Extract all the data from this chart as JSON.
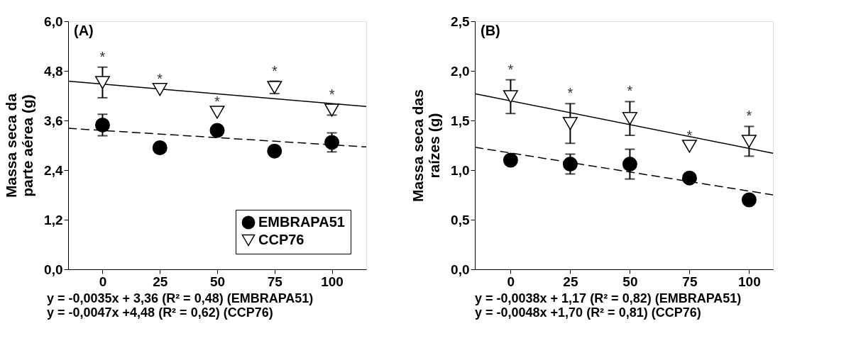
{
  "chart_data": [
    {
      "type": "scatter",
      "title": "(A)",
      "ylabel": "Massa seca da parte aérea (g)",
      "xlim": [
        -15,
        115
      ],
      "xticks": [
        0,
        25,
        50,
        75,
        100
      ],
      "ylim": [
        0,
        6
      ],
      "yticks": [
        {
          "value": 0,
          "label": "0,0"
        },
        {
          "value": 1.2,
          "label": "1,2"
        },
        {
          "value": 2.4,
          "label": "2,4"
        },
        {
          "value": 3.6,
          "label": "3,6"
        },
        {
          "value": 4.8,
          "label": "4,8"
        },
        {
          "value": 6,
          "label": "6,0"
        }
      ],
      "grid": false,
      "legend": "bottom right",
      "x": [
        0,
        25,
        50,
        75,
        100
      ],
      "series": [
        {
          "name": "EMBRAPA51",
          "color": "#000000",
          "marker": "circle",
          "values": [
            3.49,
            2.94,
            3.36,
            2.86,
            3.07
          ],
          "errors": [
            0.26,
            null,
            null,
            null,
            0.23
          ]
        },
        {
          "name": "CCP76",
          "color": "#000000",
          "marker": "triangle",
          "values": [
            4.52,
            4.35,
            3.8,
            4.4,
            3.85
          ],
          "errors": [
            0.37,
            null,
            null,
            0.15,
            0.12
          ]
        },
        {
          "type": "line",
          "x": [
            -15,
            115
          ],
          "values": [
            3.41,
            2.96
          ],
          "color": "#000000",
          "line_style": "dashed"
        },
        {
          "type": "line",
          "x": [
            -15,
            115
          ],
          "values": [
            4.55,
            3.94
          ],
          "color": "#000000",
          "line_style": "solid"
        }
      ],
      "annotations": [
        "*",
        "*",
        "*",
        "*",
        "*",
        "y = -0,0035x + 3,36 (R² = 0,48) (EMBRAPA51)",
        "y = -0,0047x +4,48 (R² = 0,62) (CCP76)"
      ]
    },
    {
      "type": "scatter",
      "title": "(B)",
      "ylabel": "Massa seca das raízes (g)",
      "xlim": [
        -15,
        110
      ],
      "xticks": [
        0,
        25,
        50,
        75,
        100
      ],
      "ylim": [
        0,
        2.5
      ],
      "yticks": [
        {
          "value": 0,
          "label": "0,0"
        },
        {
          "value": 0.5,
          "label": "0,5"
        },
        {
          "value": 1,
          "label": "1,0"
        },
        {
          "value": 1.5,
          "label": "1,5"
        },
        {
          "value": 2,
          "label": "2,0"
        },
        {
          "value": 2.5,
          "label": "2,5"
        }
      ],
      "grid": false,
      "x": [
        0,
        25,
        50,
        75,
        100
      ],
      "series": [
        {
          "color": "#000000",
          "marker": "circle",
          "values": [
            1.1,
            1.06,
            1.06,
            0.92,
            0.7
          ],
          "errors": [
            null,
            0.1,
            0.15,
            null,
            null
          ]
        },
        {
          "color": "#000000",
          "marker": "triangle",
          "values": [
            1.74,
            1.47,
            1.52,
            1.24,
            1.29
          ],
          "errors": [
            0.17,
            0.2,
            0.17,
            null,
            0.15
          ]
        },
        {
          "type": "line",
          "x": [
            -15,
            110
          ],
          "values": [
            1.23,
            0.75
          ],
          "color": "#000000",
          "line_style": "dashed"
        },
        {
          "type": "line",
          "x": [
            -15,
            110
          ],
          "values": [
            1.77,
            1.17
          ],
          "color": "#000000",
          "line_style": "solid"
        }
      ],
      "annotations": [
        "*",
        "*",
        "*",
        "*",
        "*",
        "y = -0,0038x + 1,17 (R² = 0,82) (EMBRAPA51)",
        "y = -0,0048x +1,70 (R² = 0,81) (CCP76)"
      ]
    }
  ]
}
